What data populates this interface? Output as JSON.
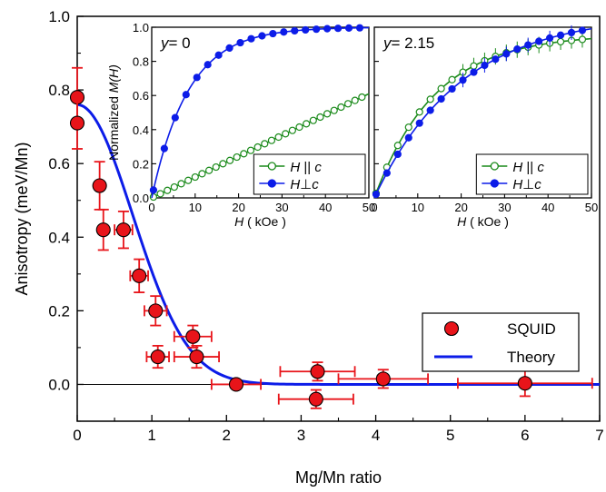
{
  "chart_data": [
    {
      "type": "scatter",
      "xlabel": "Mg/Mn ratio",
      "ylabel": "Anisotropy (meV/Mn)",
      "xlim": [
        0,
        7
      ],
      "ylim": [
        -0.1,
        1.0
      ],
      "xticks": [
        "0",
        "1",
        "2",
        "3",
        "4",
        "5",
        "6",
        "7"
      ],
      "yticks": [
        "0.0",
        "0.2",
        "0.4",
        "0.6",
        "0.8",
        "1.0"
      ],
      "legend_position": "bottom-right",
      "series": [
        {
          "name": "SQUID",
          "color": "#e8141a",
          "points": [
            {
              "x": 0.0,
              "y": 0.78,
              "xerr": 0,
              "yerr": 0.08
            },
            {
              "x": 0.0,
              "y": 0.71,
              "xerr": 0,
              "yerr": 0.07
            },
            {
              "x": 0.3,
              "y": 0.54,
              "xerr": 0,
              "yerr": 0.065
            },
            {
              "x": 0.35,
              "y": 0.42,
              "xerr": 0,
              "yerr": 0.055
            },
            {
              "x": 0.62,
              "y": 0.42,
              "xerr": 0.12,
              "yerr": 0.05
            },
            {
              "x": 0.83,
              "y": 0.295,
              "xerr": 0.12,
              "yerr": 0.045
            },
            {
              "x": 1.05,
              "y": 0.2,
              "xerr": 0.15,
              "yerr": 0.04
            },
            {
              "x": 1.08,
              "y": 0.075,
              "xerr": 0.15,
              "yerr": 0.03
            },
            {
              "x": 1.55,
              "y": 0.13,
              "xerr": 0.25,
              "yerr": 0.03
            },
            {
              "x": 1.6,
              "y": 0.075,
              "xerr": 0.3,
              "yerr": 0.03
            },
            {
              "x": 2.13,
              "y": 0.0,
              "xerr": 0.33,
              "yerr": 0
            },
            {
              "x": 3.22,
              "y": 0.035,
              "xerr": 0.5,
              "yerr": 0.025
            },
            {
              "x": 3.2,
              "y": -0.04,
              "xerr": 0.5,
              "yerr": 0.025
            },
            {
              "x": 4.1,
              "y": 0.015,
              "xerr": 0.6,
              "yerr": 0.025
            },
            {
              "x": 6.0,
              "y": 0.003,
              "xerr": 0.9,
              "yerr": 0.035
            }
          ]
        },
        {
          "name": "Theory",
          "color": "#0c1ce8",
          "function": "0.76*exp(-(x/1.05)^2)"
        }
      ]
    },
    {
      "type": "line",
      "ititle": "y = 0",
      "ititle_var": "y",
      "ititle_val": "= 0",
      "xlabel": "H ( kOe )",
      "xlabel_var": "H",
      "xlabel_unit": " ( kOe )",
      "ylabel": "Normalized M(H)",
      "ylabel_text": "Normalized ",
      "ylabel_var": "M(H)",
      "xlim": [
        0,
        50
      ],
      "ylim": [
        0,
        1.0
      ],
      "xticks": [
        "0",
        "10",
        "20",
        "30",
        "40",
        "50"
      ],
      "yticks": [
        "0.0",
        "0.2",
        "0.4",
        "0.6",
        "0.8",
        "1.0"
      ],
      "legend": [
        {
          "name": "H || c",
          "var": "H",
          "sym": " || ",
          "tail": "c",
          "color": "#1a8a1a",
          "marker": "open-circle"
        },
        {
          "name": "H⊥c",
          "var": "H",
          "sym": "⊥",
          "tail": "c",
          "color": "#0c1ce8",
          "marker": "filled-circle"
        }
      ],
      "series": [
        {
          "name": "H || c",
          "color": "#1a8a1a",
          "fn": "linear",
          "k": 0.0122
        },
        {
          "name": "H⊥c",
          "color": "#0c1ce8",
          "fn": "sat",
          "a": 1.0,
          "b": 0.0,
          "tau": 8.5
        }
      ]
    },
    {
      "type": "line",
      "ititle": "y = 2.15",
      "ititle_var": "y",
      "ititle_val": "= 2.15",
      "xlabel": "H ( kOe )",
      "xlabel_var": "H",
      "xlabel_unit": " ( kOe )",
      "xlim": [
        0,
        50
      ],
      "ylim": [
        0,
        1.0
      ],
      "xticks": [
        "0",
        "10",
        "20",
        "30",
        "40",
        "50"
      ],
      "legend": [
        {
          "name": "H || c",
          "var": "H",
          "sym": " || ",
          "tail": "c",
          "color": "#1a8a1a",
          "marker": "open-circle"
        },
        {
          "name": "H⊥c",
          "var": "H",
          "sym": "⊥",
          "tail": "c",
          "color": "#0c1ce8",
          "marker": "filled-circle"
        }
      ],
      "series": [
        {
          "name": "H || c",
          "color": "#1a8a1a",
          "fn": "sat",
          "a": 0.96,
          "tau": 14
        },
        {
          "name": "H⊥c",
          "color": "#0c1ce8",
          "fn": "sat",
          "a": 1.08,
          "tau": 20
        }
      ]
    }
  ]
}
